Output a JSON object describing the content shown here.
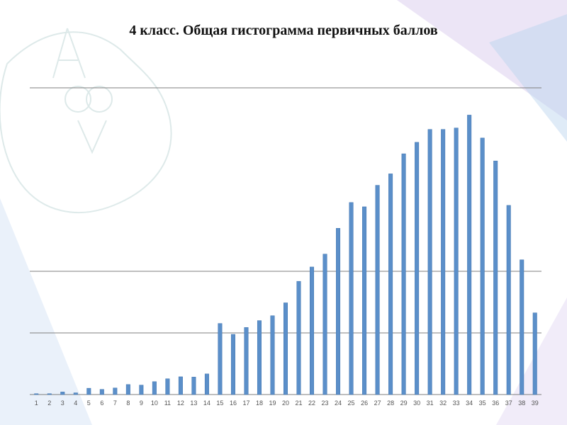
{
  "slide": {
    "title": "4 класс. Общая гистограмма первичных баллов",
    "logo_text": "АСОУ"
  },
  "colors": {
    "bar": "#5b8fc9",
    "bar_edge": "#3f74b0",
    "gridline": "#7f7f7f",
    "decor_purple": "#c8b5e6",
    "decor_blue": "#b9d2ee"
  },
  "chart_data": {
    "type": "bar",
    "title": "4 класс. Общая гистограмма первичных баллов",
    "xlabel": "",
    "ylabel": "",
    "categories": [
      "1",
      "2",
      "3",
      "4",
      "5",
      "6",
      "7",
      "8",
      "9",
      "10",
      "11",
      "12",
      "13",
      "14",
      "15",
      "16",
      "17",
      "18",
      "19",
      "20",
      "21",
      "22",
      "23",
      "24",
      "25",
      "26",
      "27",
      "28",
      "29",
      "30",
      "31",
      "32",
      "33",
      "34",
      "35",
      "36",
      "37",
      "38",
      "39"
    ],
    "values": [
      0.3,
      0.3,
      0.9,
      0.6,
      2.2,
      1.8,
      2.3,
      3.5,
      3.3,
      4.5,
      5.5,
      6.2,
      6.1,
      7.2,
      24.8,
      21.0,
      23.4,
      25.8,
      27.5,
      32.0,
      39.5,
      44.5,
      49.0,
      58.0,
      67.0,
      65.5,
      73.0,
      77.0,
      84.0,
      88.0,
      92.5,
      92.5,
      93.0,
      97.5,
      89.5,
      81.5,
      66.0,
      47.0,
      28.5
    ],
    "ylim": [
      0,
      107
    ],
    "gridlines": [
      0,
      21.5,
      43,
      107
    ],
    "grid": true,
    "legend": "none"
  }
}
